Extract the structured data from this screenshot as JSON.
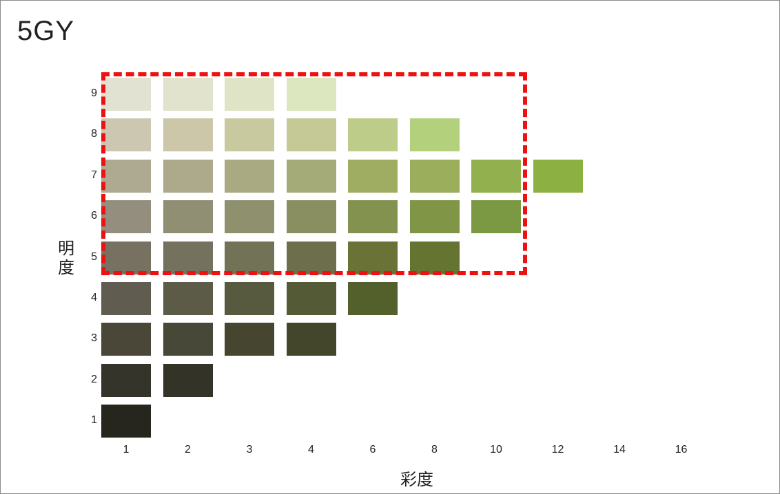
{
  "hue": "5GY",
  "axis": {
    "value_label": "明度",
    "chroma_label": "彩度"
  },
  "value_levels": [
    "9",
    "8",
    "7",
    "6",
    "5",
    "4",
    "3",
    "2",
    "1"
  ],
  "chroma_levels": [
    "1",
    "2",
    "3",
    "4",
    "6",
    "8",
    "10",
    "12",
    "14",
    "16"
  ],
  "rows": [
    {
      "value": "9",
      "chips": [
        {
          "chroma": "1",
          "color": "#e2e2d2"
        },
        {
          "chroma": "2",
          "color": "#e1e3cc"
        },
        {
          "chroma": "3",
          "color": "#dfe4c7"
        },
        {
          "chroma": "4",
          "color": "#dce6bf"
        }
      ]
    },
    {
      "value": "8",
      "chips": [
        {
          "chroma": "1",
          "color": "#ccc7b1"
        },
        {
          "chroma": "2",
          "color": "#cbc7a8"
        },
        {
          "chroma": "3",
          "color": "#c8c99f"
        },
        {
          "chroma": "4",
          "color": "#c4c995"
        },
        {
          "chroma": "6",
          "color": "#bdcd89"
        },
        {
          "chroma": "8",
          "color": "#b3d07d"
        }
      ]
    },
    {
      "value": "7",
      "chips": [
        {
          "chroma": "1",
          "color": "#aea991"
        },
        {
          "chroma": "2",
          "color": "#acaa8a"
        },
        {
          "chroma": "3",
          "color": "#a9aa82"
        },
        {
          "chroma": "4",
          "color": "#a4aa78"
        },
        {
          "chroma": "6",
          "color": "#9fad63"
        },
        {
          "chroma": "8",
          "color": "#9aae5c"
        },
        {
          "chroma": "10",
          "color": "#92b04d"
        },
        {
          "chroma": "12",
          "color": "#8db043"
        }
      ]
    },
    {
      "value": "6",
      "chips": [
        {
          "chroma": "1",
          "color": "#938e7d"
        },
        {
          "chroma": "2",
          "color": "#918f73"
        },
        {
          "chroma": "3",
          "color": "#8f906d"
        },
        {
          "chroma": "4",
          "color": "#8a8f62"
        },
        {
          "chroma": "6",
          "color": "#84924f"
        },
        {
          "chroma": "8",
          "color": "#809546"
        },
        {
          "chroma": "10",
          "color": "#7a9942"
        }
      ]
    },
    {
      "value": "5",
      "chips": [
        {
          "chroma": "1",
          "color": "#767160"
        },
        {
          "chroma": "2",
          "color": "#74725e"
        },
        {
          "chroma": "3",
          "color": "#727256"
        },
        {
          "chroma": "4",
          "color": "#6d6f4c"
        },
        {
          "chroma": "6",
          "color": "#6b7236"
        },
        {
          "chroma": "8",
          "color": "#667431"
        }
      ]
    },
    {
      "value": "4",
      "chips": [
        {
          "chroma": "1",
          "color": "#615c50"
        },
        {
          "chroma": "2",
          "color": "#5c5b48"
        },
        {
          "chroma": "3",
          "color": "#575a3e"
        },
        {
          "chroma": "4",
          "color": "#545a36"
        },
        {
          "chroma": "6",
          "color": "#53602c"
        }
      ]
    },
    {
      "value": "3",
      "chips": [
        {
          "chroma": "1",
          "color": "#4a4739"
        },
        {
          "chroma": "2",
          "color": "#484838"
        },
        {
          "chroma": "3",
          "color": "#464630"
        },
        {
          "chroma": "4",
          "color": "#43462a"
        }
      ]
    },
    {
      "value": "2",
      "chips": [
        {
          "chroma": "1",
          "color": "#35342b"
        },
        {
          "chroma": "2",
          "color": "#343328"
        }
      ]
    },
    {
      "value": "1",
      "chips": [
        {
          "chroma": "1",
          "color": "#26261e"
        }
      ]
    }
  ]
}
